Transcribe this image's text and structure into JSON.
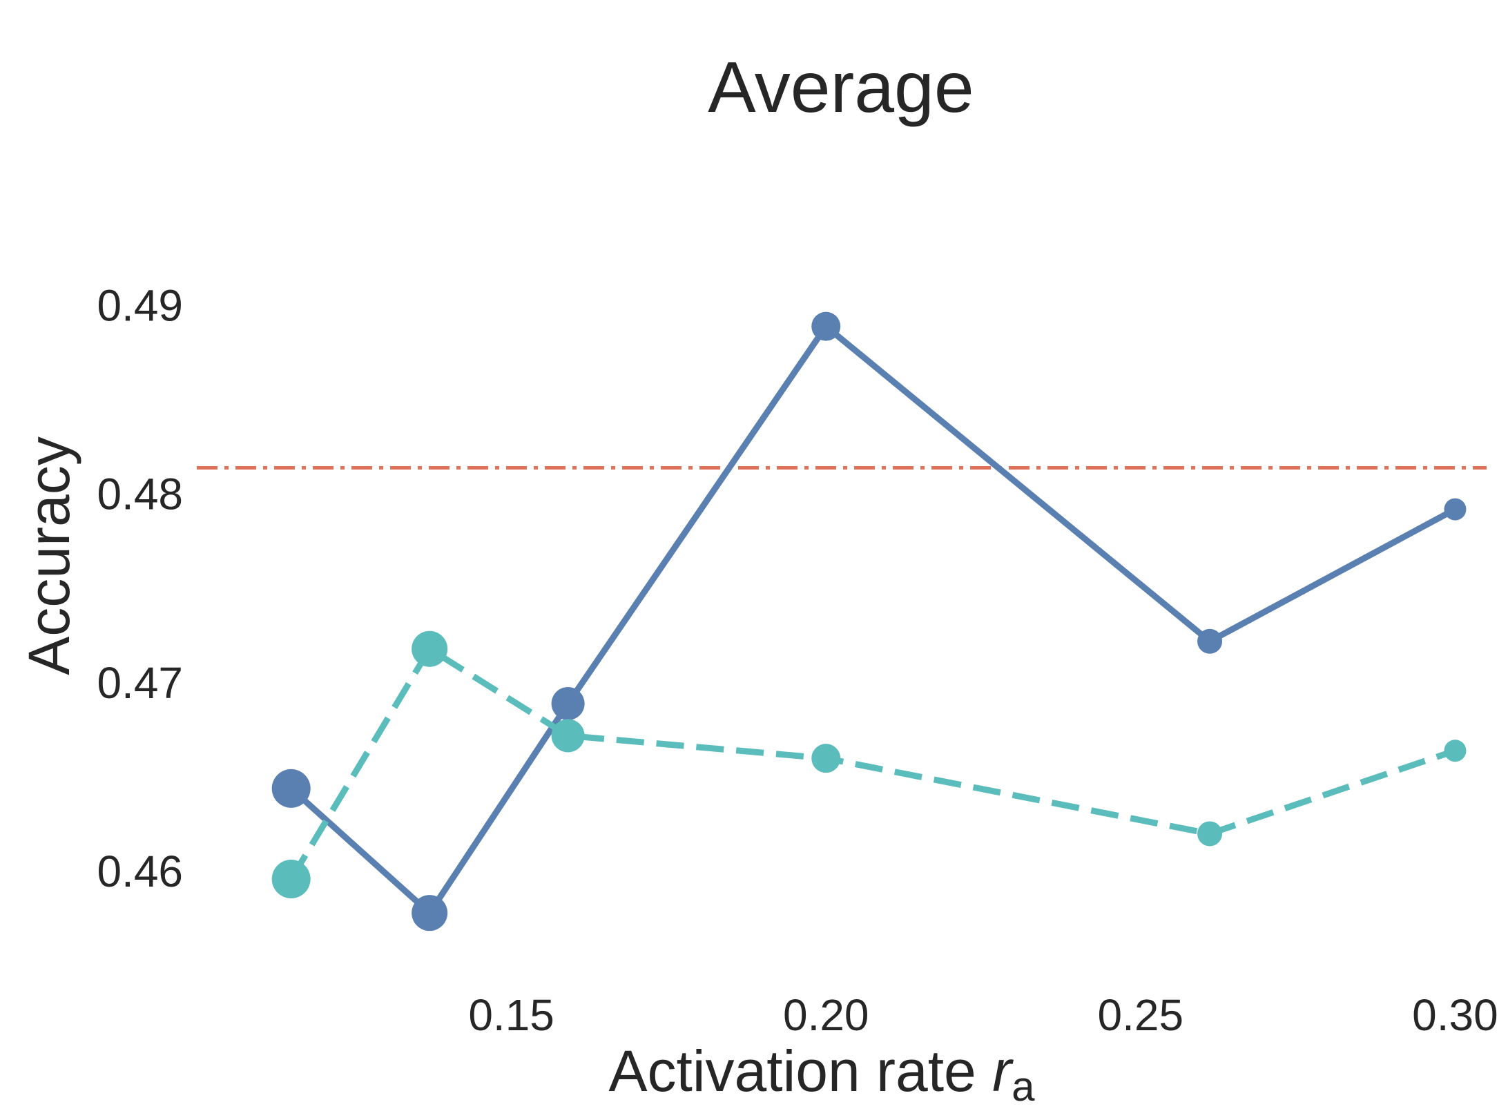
{
  "chart_data": {
    "type": "line",
    "title": "Average",
    "xlabel": {
      "main": "Activation rate ",
      "var": "r",
      "sub": "a"
    },
    "ylabel": "Accuracy",
    "xlim": [
      0.1,
      0.305
    ],
    "ylim": [
      0.4555,
      0.4965
    ],
    "xticks": [
      {
        "value": 0.15,
        "label": "0.15"
      },
      {
        "value": 0.2,
        "label": "0.20"
      },
      {
        "value": 0.25,
        "label": "0.25"
      },
      {
        "value": 0.3,
        "label": "0.30"
      }
    ],
    "yticks": [
      {
        "value": 0.46,
        "label": "0.46"
      },
      {
        "value": 0.47,
        "label": "0.47"
      },
      {
        "value": 0.48,
        "label": "0.48"
      },
      {
        "value": 0.49,
        "label": "0.49"
      }
    ],
    "grid": false,
    "series": [
      {
        "style": "solid",
        "color": "#5a80b2",
        "points": [
          {
            "x": 0.115,
            "y": 0.4644,
            "size": 28
          },
          {
            "x": 0.137,
            "y": 0.4578,
            "size": 26
          },
          {
            "x": 0.159,
            "y": 0.4689,
            "size": 24
          },
          {
            "x": 0.2,
            "y": 0.4889,
            "size": 21
          },
          {
            "x": 0.261,
            "y": 0.4722,
            "size": 18
          },
          {
            "x": 0.3,
            "y": 0.4792,
            "size": 16
          }
        ]
      },
      {
        "style": "dashed",
        "color": "#5bbcbc",
        "points": [
          {
            "x": 0.115,
            "y": 0.4596,
            "size": 28
          },
          {
            "x": 0.137,
            "y": 0.4718,
            "size": 26
          },
          {
            "x": 0.159,
            "y": 0.4672,
            "size": 24
          },
          {
            "x": 0.2,
            "y": 0.466,
            "size": 21
          },
          {
            "x": 0.261,
            "y": 0.462,
            "size": 18
          },
          {
            "x": 0.3,
            "y": 0.4664,
            "size": 16
          }
        ]
      }
    ],
    "reference_line": {
      "y": 0.4814,
      "style": "dash-dot",
      "color": "#e07058"
    }
  }
}
